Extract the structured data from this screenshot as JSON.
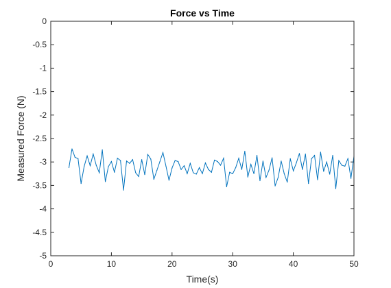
{
  "chart_data": {
    "type": "line",
    "title": "Force vs Time",
    "xlabel": "Time(s)",
    "ylabel": "Measured Force (N)",
    "xlim": [
      0,
      50
    ],
    "ylim": [
      -5,
      0
    ],
    "xticks": [
      0,
      10,
      20,
      30,
      40,
      50
    ],
    "xtick_labels": [
      "0",
      "10",
      "20",
      "30",
      "40",
      "50"
    ],
    "yticks": [
      0,
      -0.5,
      -1,
      -1.5,
      -2,
      -2.5,
      -3,
      -3.5,
      -4,
      -4.5,
      -5
    ],
    "ytick_labels": [
      "0",
      "-0.5",
      "-1",
      "-1.5",
      "-2",
      "-2.5",
      "-3",
      "-3.5",
      "-4",
      "-4.5",
      "-5"
    ],
    "grid": false,
    "series": [
      {
        "color": "#0072bd",
        "x": [
          3.0,
          3.5,
          4.0,
          4.5,
          5.0,
          5.5,
          6.0,
          6.5,
          7.0,
          7.5,
          8.0,
          8.5,
          9.0,
          9.5,
          10.0,
          10.5,
          11.0,
          11.5,
          12.0,
          12.5,
          13.0,
          13.5,
          14.0,
          14.5,
          15.0,
          15.5,
          16.0,
          16.5,
          17.0,
          17.5,
          18.0,
          18.5,
          19.0,
          19.5,
          20.0,
          20.5,
          21.0,
          21.5,
          22.0,
          22.5,
          23.0,
          23.5,
          24.0,
          24.5,
          25.0,
          25.5,
          26.0,
          26.5,
          27.0,
          27.5,
          28.0,
          28.5,
          29.0,
          29.5,
          30.0,
          30.5,
          31.0,
          31.5,
          32.0,
          32.5,
          33.0,
          33.5,
          34.0,
          34.5,
          35.0,
          35.5,
          36.0,
          36.5,
          37.0,
          37.5,
          38.0,
          38.5,
          39.0,
          39.5,
          40.0,
          40.5,
          41.0,
          41.5,
          42.0,
          42.5,
          43.0,
          43.5,
          44.0,
          44.5,
          45.0,
          45.5,
          46.0,
          46.5,
          47.0,
          47.5,
          48.0,
          48.5,
          49.0,
          49.5,
          50.0
        ],
        "y": [
          -3.12,
          -2.72,
          -2.9,
          -2.93,
          -3.46,
          -3.1,
          -2.87,
          -3.08,
          -2.83,
          -3.07,
          -3.23,
          -2.74,
          -3.42,
          -3.1,
          -2.99,
          -3.22,
          -2.92,
          -2.97,
          -3.6,
          -2.98,
          -3.03,
          -2.95,
          -3.23,
          -3.31,
          -2.95,
          -3.27,
          -2.84,
          -2.94,
          -3.37,
          -3.18,
          -2.99,
          -2.8,
          -3.09,
          -3.39,
          -3.13,
          -2.97,
          -2.99,
          -3.16,
          -3.08,
          -3.25,
          -3.03,
          -3.23,
          -3.26,
          -3.12,
          -3.25,
          -3.02,
          -3.16,
          -3.22,
          -2.96,
          -2.99,
          -3.07,
          -2.92,
          -3.53,
          -3.22,
          -3.25,
          -3.12,
          -2.92,
          -3.16,
          -2.77,
          -3.32,
          -3.05,
          -3.25,
          -2.86,
          -3.4,
          -2.98,
          -3.33,
          -3.17,
          -2.91,
          -3.51,
          -3.33,
          -2.98,
          -3.25,
          -3.43,
          -2.93,
          -3.19,
          -3.02,
          -2.82,
          -3.16,
          -2.83,
          -3.46,
          -2.93,
          -2.86,
          -3.38,
          -2.79,
          -3.2,
          -3.0,
          -3.26,
          -2.86,
          -3.57,
          -2.97,
          -3.07,
          -3.09,
          -2.93,
          -3.35,
          -2.88
        ]
      }
    ]
  }
}
